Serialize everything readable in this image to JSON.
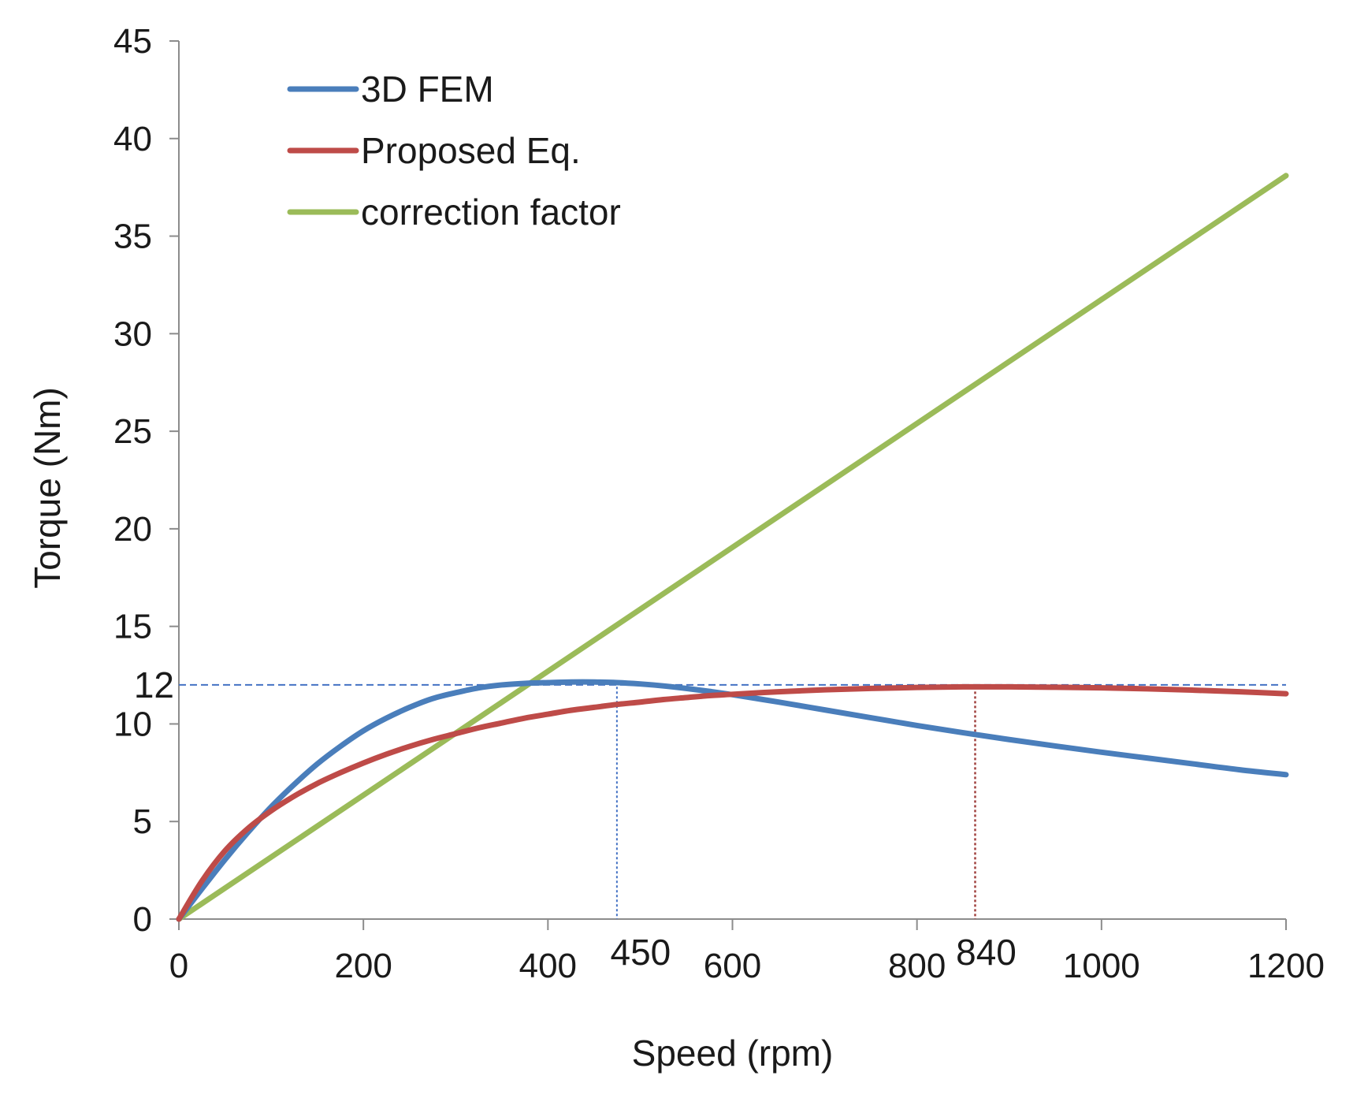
{
  "chart_data": {
    "type": "line",
    "title": "",
    "xlabel": "Speed (rpm)",
    "ylabel": "Torque (Nm)",
    "xlim": [
      0,
      1200
    ],
    "ylim": [
      0,
      45
    ],
    "x_ticks": [
      0,
      200,
      400,
      600,
      800,
      1000,
      1200
    ],
    "x_tick_labels": [
      "0",
      "200",
      "400",
      "600",
      "800",
      "1000",
      "1200"
    ],
    "y_ticks": [
      0,
      5,
      10,
      15,
      20,
      25,
      30,
      35,
      40,
      45
    ],
    "y_tick_labels": [
      "0",
      "5",
      "10",
      "15",
      "20",
      "25",
      "30",
      "35",
      "40",
      "45"
    ],
    "grid": false,
    "legend_position": "top-left",
    "series": [
      {
        "name": "3D FEM",
        "color": "#4a7ebb",
        "x": [
          0,
          25,
          50,
          75,
          100,
          125,
          150,
          175,
          200,
          225,
          250,
          275,
          300,
          325,
          350,
          375,
          400,
          425,
          450,
          475,
          500,
          525,
          550,
          575,
          600,
          650,
          700,
          750,
          800,
          850,
          900,
          950,
          1000,
          1050,
          1100,
          1150,
          1200
        ],
        "y": [
          0,
          1.55,
          3.05,
          4.45,
          5.75,
          6.9,
          7.95,
          8.85,
          9.65,
          10.3,
          10.85,
          11.3,
          11.6,
          11.85,
          12.0,
          12.08,
          12.12,
          12.15,
          12.15,
          12.12,
          12.05,
          11.95,
          11.82,
          11.67,
          11.5,
          11.12,
          10.72,
          10.32,
          9.92,
          9.55,
          9.2,
          8.87,
          8.55,
          8.25,
          7.95,
          7.65,
          7.4
        ]
      },
      {
        "name": "Proposed Eq.",
        "color": "#be4b48",
        "x": [
          0,
          25,
          50,
          75,
          100,
          125,
          150,
          175,
          200,
          225,
          250,
          275,
          300,
          325,
          350,
          375,
          400,
          425,
          450,
          475,
          500,
          525,
          550,
          575,
          600,
          650,
          700,
          750,
          800,
          850,
          900,
          950,
          1000,
          1050,
          1100,
          1150,
          1200
        ],
        "y": [
          0,
          1.95,
          3.5,
          4.65,
          5.55,
          6.3,
          6.95,
          7.5,
          8.0,
          8.45,
          8.85,
          9.2,
          9.5,
          9.8,
          10.05,
          10.3,
          10.5,
          10.7,
          10.85,
          11.0,
          11.12,
          11.25,
          11.35,
          11.45,
          11.52,
          11.65,
          11.75,
          11.82,
          11.87,
          11.9,
          11.9,
          11.88,
          11.85,
          11.8,
          11.73,
          11.65,
          11.55
        ]
      },
      {
        "name": "correction factor",
        "color": "#9bbb59",
        "x": [
          0,
          1200
        ],
        "y": [
          0,
          38.1
        ]
      }
    ],
    "annotations": {
      "hline_12": {
        "value": 12,
        "label": "12",
        "color": "#4472c4"
      },
      "vline_450": {
        "value": 450,
        "label": "450",
        "color": "#4472c4"
      },
      "vline_840": {
        "value": 840,
        "label": "840",
        "color": "#a0413f"
      }
    }
  }
}
